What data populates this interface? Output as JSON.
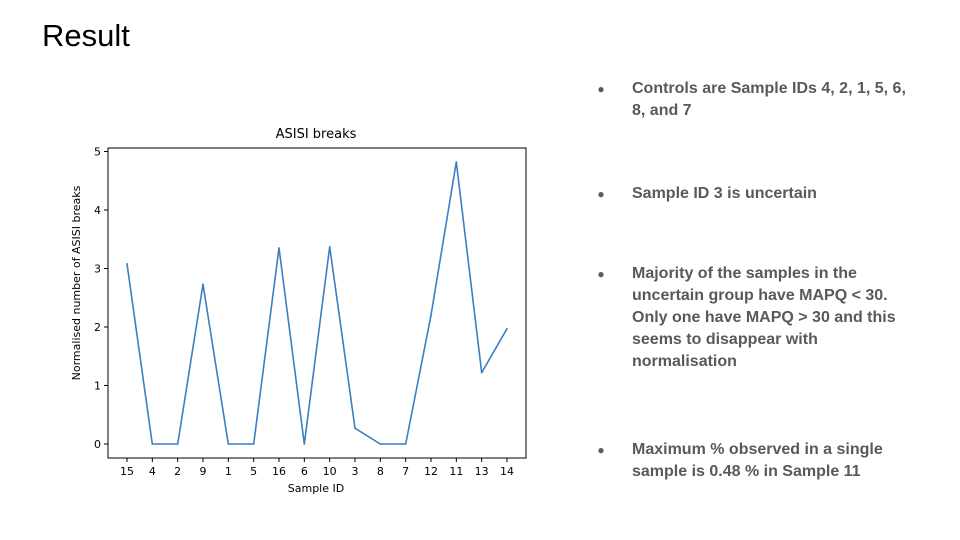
{
  "slide": {
    "title": "Result"
  },
  "bullets": [
    "Controls are Sample IDs 4, 2, 1, 5, 6, 8, and 7",
    "Sample ID 3 is uncertain",
    "Majority of the samples in the uncertain group have MAPQ < 30. Only one have MAPQ > 30 and this seems to disappear with normalisation",
    "Maximum % observed in a single sample is 0.48 % in Sample 11"
  ],
  "colors": {
    "line": "#3a7fc1",
    "bullet_text": "#595959",
    "title_text": "#000000"
  },
  "chart_data": {
    "type": "line",
    "title": "ASISI breaks",
    "xlabel": "Sample ID",
    "ylabel": "Normalised number of ASISI breaks",
    "categories": [
      "15",
      "4",
      "2",
      "9",
      "1",
      "5",
      "16",
      "6",
      "10",
      "3",
      "8",
      "7",
      "12",
      "11",
      "13",
      "14"
    ],
    "values": [
      3.08,
      0.0,
      0.0,
      2.73,
      0.0,
      0.0,
      3.35,
      0.0,
      3.37,
      0.27,
      0.0,
      0.0,
      2.2,
      4.82,
      1.22,
      1.97
    ],
    "yticks": [
      "0",
      "1",
      "2",
      "3",
      "4",
      "5"
    ],
    "ylim": [
      -0.24,
      5.06
    ],
    "grid": false,
    "legend": false
  }
}
